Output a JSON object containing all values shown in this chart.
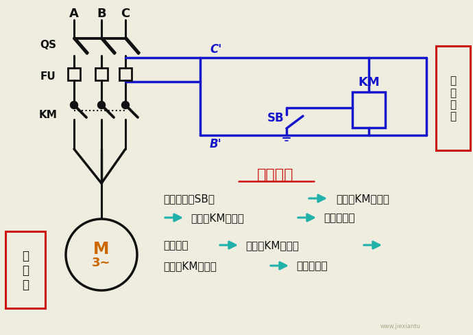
{
  "bg_color": "#eeede0",
  "lc": "#111111",
  "bc": "#1515cc",
  "ac": "#20b2aa",
  "rc": "#cc1111",
  "oc": "#cc6600",
  "phase_labels": [
    "A",
    "B",
    "C"
  ],
  "qs_label": "QS",
  "fu_label": "FU",
  "km_main_label": "KM",
  "km_ctrl_label": "KM",
  "sb_label": "SB",
  "c_prime": "C'",
  "b_prime": "B'",
  "motor_line1": "M",
  "motor_line2": "3~",
  "main_box_text": "主\n电\n路",
  "ctrl_box_text": "控\n制\n电\n路",
  "action_title": "动作过程",
  "action_l1a": "按下按鈕（SB）",
  "action_l1b": "线圈（KM）通电",
  "action_l2a": "触头（KM）闭合",
  "action_l2b": "电机转动；",
  "action_l3a": "按鈕松开",
  "action_l3b": "线圈（KM）断电",
  "action_l4a": "触头（KM）打开",
  "action_l4b": "电机停转。",
  "watermark": "www.jiexiantu",
  "fig_width": 6.9,
  "fig_height": 4.89,
  "dpi": 100
}
